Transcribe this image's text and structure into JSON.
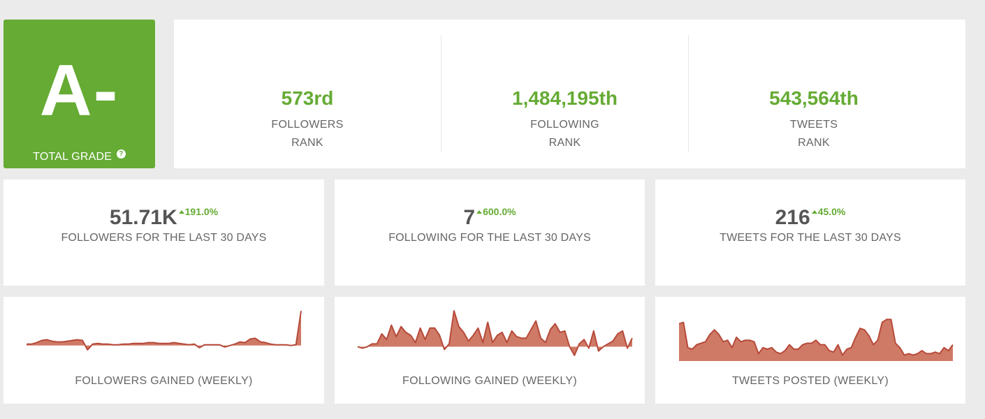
{
  "grade": {
    "letter": "A-",
    "label": "TOTAL GRADE",
    "help_icon": "question-circle-icon",
    "color": "#65ab34"
  },
  "ranks": [
    {
      "value": "573rd",
      "label1": "FOLLOWERS",
      "label2": "RANK"
    },
    {
      "value": "1,484,195th",
      "label1": "FOLLOWING",
      "label2": "RANK"
    },
    {
      "value": "543,564th",
      "label1": "TWEETS",
      "label2": "RANK"
    }
  ],
  "stats": [
    {
      "value": "51.71K",
      "change": "191.0%",
      "label": "FOLLOWERS FOR THE LAST 30 DAYS"
    },
    {
      "value": "7",
      "change": "600.0%",
      "label": "FOLLOWING FOR THE LAST 30 DAYS"
    },
    {
      "value": "216",
      "change": "45.0%",
      "label": "TWEETS FOR THE LAST 30 DAYS"
    }
  ],
  "charts": [
    {
      "label": "FOLLOWERS GAINED (WEEKLY)",
      "baseline": 0,
      "range": [
        -6,
        50
      ],
      "values": [
        2,
        2,
        4,
        7,
        8,
        6,
        5,
        5,
        6,
        7,
        8,
        7,
        -6,
        2,
        3,
        2,
        2,
        1,
        1,
        2,
        2,
        3,
        3,
        3,
        4,
        4,
        3,
        3,
        3,
        4,
        3,
        2,
        1,
        2,
        -3,
        1,
        1,
        1,
        1,
        -2,
        0,
        2,
        5,
        4,
        9,
        10,
        5,
        4,
        2,
        1,
        1,
        1,
        0,
        1,
        48
      ]
    },
    {
      "label": "FOLLOWING GAINED (WEEKLY)",
      "baseline": 0,
      "range": [
        -8,
        26
      ],
      "values": [
        0,
        -1,
        0,
        2,
        2,
        9,
        5,
        15,
        7,
        14,
        10,
        8,
        3,
        13,
        5,
        13,
        13,
        8,
        -2,
        2,
        25,
        14,
        10,
        4,
        8,
        13,
        3,
        17,
        3,
        8,
        10,
        3,
        11,
        7,
        6,
        6,
        12,
        18,
        6,
        3,
        12,
        16,
        10,
        11,
        0,
        -6,
        2,
        5,
        -1,
        11,
        -3,
        0,
        2,
        4,
        9,
        11,
        -1,
        6
      ]
    },
    {
      "label": "TWEETS POSTED (WEEKLY)",
      "baseline": 0,
      "range": [
        0,
        31
      ],
      "values": [
        25,
        26,
        9,
        8,
        11,
        12,
        13,
        18,
        21,
        18,
        13,
        14,
        9,
        16,
        13,
        14,
        14,
        13,
        5,
        9,
        8,
        9,
        6,
        5,
        7,
        11,
        8,
        8,
        11,
        12,
        12,
        14,
        11,
        11,
        7,
        6,
        11,
        4,
        8,
        9,
        16,
        22,
        21,
        17,
        11,
        14,
        26,
        28,
        28,
        12,
        9,
        4,
        5,
        4,
        5,
        7,
        5,
        5,
        6,
        5,
        9,
        7,
        11
      ]
    }
  ],
  "colors": {
    "accent": "#65ab34",
    "chart_fill": "#cf7a66",
    "chart_line": "#b64a3a",
    "text_muted": "#666666",
    "text_dark": "#555555"
  }
}
